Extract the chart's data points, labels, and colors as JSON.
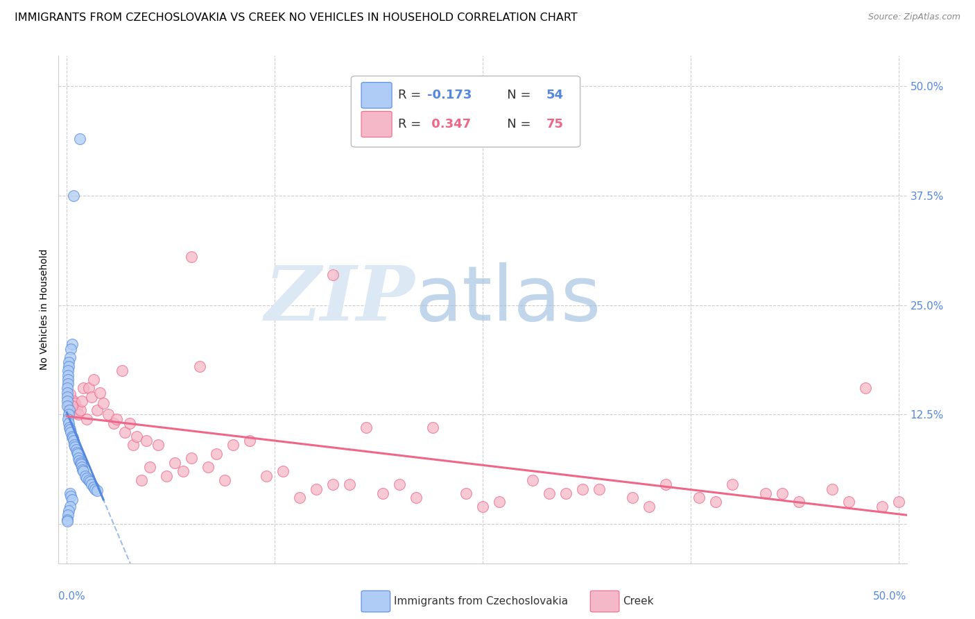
{
  "title": "IMMIGRANTS FROM CZECHOSLOVAKIA VS CREEK NO VEHICLES IN HOUSEHOLD CORRELATION CHART",
  "source": "Source: ZipAtlas.com",
  "ylabel": "No Vehicles in Household",
  "xlim": [
    -0.005,
    0.505
  ],
  "ylim": [
    -0.045,
    0.535
  ],
  "blue_color": "#aeccf5",
  "pink_color": "#f5b8c8",
  "blue_line_color": "#5588dd",
  "pink_line_color": "#ee6688",
  "blue_edge_color": "#5588dd",
  "pink_edge_color": "#ee6688",
  "grid_color": "#cccccc",
  "background_color": "#ffffff",
  "right_tick_color": "#5588dd",
  "title_fontsize": 11.5,
  "source_fontsize": 9,
  "tick_fontsize": 11,
  "ylabel_fontsize": 10,
  "legend_r_blue": "R = -0.173",
  "legend_n_blue": "N = 54",
  "legend_r_pink": "R =  0.347",
  "legend_n_pink": "N = 75",
  "ytick_vals": [
    0.0,
    0.125,
    0.25,
    0.375,
    0.5
  ],
  "ytick_labels_right": [
    "",
    "12.5%",
    "25.0%",
    "37.5%",
    "50.0%"
  ],
  "blue_scatter_x": [
    0.0078,
    0.0042,
    0.0031,
    0.0024,
    0.0018,
    0.0012,
    0.0009,
    0.0008,
    0.0007,
    0.0006,
    0.0005,
    0.0004,
    0.0003,
    0.0003,
    0.0002,
    0.0002,
    0.0015,
    0.0011,
    0.0008,
    0.0013,
    0.0016,
    0.002,
    0.0025,
    0.003,
    0.0035,
    0.004,
    0.0045,
    0.005,
    0.0055,
    0.006,
    0.0065,
    0.007,
    0.0075,
    0.008,
    0.0085,
    0.009,
    0.0095,
    0.01,
    0.011,
    0.012,
    0.013,
    0.014,
    0.015,
    0.016,
    0.017,
    0.018,
    0.002,
    0.0025,
    0.003,
    0.0018,
    0.001,
    0.0007,
    0.0004,
    0.0001
  ],
  "blue_scatter_y": [
    0.44,
    0.375,
    0.205,
    0.2,
    0.19,
    0.185,
    0.18,
    0.175,
    0.17,
    0.165,
    0.16,
    0.155,
    0.15,
    0.145,
    0.14,
    0.135,
    0.13,
    0.125,
    0.12,
    0.115,
    0.11,
    0.108,
    0.105,
    0.1,
    0.098,
    0.095,
    0.09,
    0.088,
    0.085,
    0.082,
    0.08,
    0.075,
    0.072,
    0.07,
    0.068,
    0.065,
    0.062,
    0.06,
    0.055,
    0.052,
    0.05,
    0.048,
    0.045,
    0.042,
    0.04,
    0.038,
    0.035,
    0.032,
    0.028,
    0.02,
    0.015,
    0.01,
    0.005,
    0.003
  ],
  "pink_scatter_x": [
    0.001,
    0.002,
    0.003,
    0.004,
    0.005,
    0.006,
    0.007,
    0.008,
    0.009,
    0.01,
    0.012,
    0.013,
    0.015,
    0.016,
    0.018,
    0.02,
    0.022,
    0.025,
    0.028,
    0.03,
    0.033,
    0.035,
    0.038,
    0.04,
    0.042,
    0.045,
    0.048,
    0.05,
    0.055,
    0.06,
    0.065,
    0.07,
    0.075,
    0.08,
    0.085,
    0.09,
    0.095,
    0.1,
    0.11,
    0.12,
    0.13,
    0.14,
    0.15,
    0.16,
    0.17,
    0.18,
    0.19,
    0.2,
    0.22,
    0.24,
    0.26,
    0.28,
    0.3,
    0.32,
    0.34,
    0.36,
    0.38,
    0.4,
    0.42,
    0.44,
    0.46,
    0.48,
    0.5,
    0.21,
    0.25,
    0.29,
    0.31,
    0.35,
    0.39,
    0.43,
    0.47,
    0.49,
    0.075,
    0.16,
    0.003
  ],
  "pink_scatter_y": [
    0.135,
    0.148,
    0.128,
    0.14,
    0.138,
    0.132,
    0.125,
    0.13,
    0.14,
    0.155,
    0.12,
    0.155,
    0.145,
    0.165,
    0.13,
    0.15,
    0.138,
    0.125,
    0.115,
    0.12,
    0.175,
    0.105,
    0.115,
    0.09,
    0.1,
    0.05,
    0.095,
    0.065,
    0.09,
    0.055,
    0.07,
    0.06,
    0.075,
    0.18,
    0.065,
    0.08,
    0.05,
    0.09,
    0.095,
    0.055,
    0.06,
    0.03,
    0.04,
    0.045,
    0.045,
    0.11,
    0.035,
    0.045,
    0.11,
    0.035,
    0.025,
    0.05,
    0.035,
    0.04,
    0.03,
    0.045,
    0.03,
    0.045,
    0.035,
    0.025,
    0.04,
    0.155,
    0.025,
    0.03,
    0.02,
    0.035,
    0.04,
    0.02,
    0.025,
    0.035,
    0.025,
    0.02,
    0.305,
    0.285,
    0.135
  ]
}
